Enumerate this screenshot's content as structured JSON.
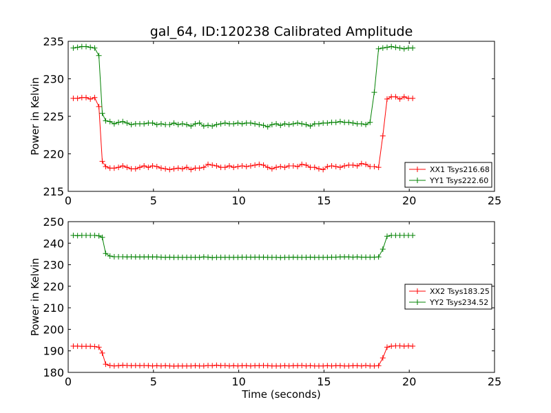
{
  "chart_data": [
    {
      "type": "line",
      "title": "gal_64, ID:120238 Calibrated Amplitude",
      "xlabel": "",
      "ylabel": "Power in Kelvin",
      "xlim": [
        0,
        25
      ],
      "ylim": [
        215,
        235
      ],
      "xticks": [
        "0",
        "5",
        "10",
        "15",
        "20",
        "25"
      ],
      "yticks": [
        "215",
        "220",
        "225",
        "230",
        "235"
      ],
      "grid": false,
      "legend_position": "lower-right",
      "marker": "plus",
      "x": [
        0.3,
        0.55,
        0.8,
        1.05,
        1.3,
        1.55,
        1.8,
        2.0,
        2.2,
        2.45,
        2.7,
        2.95,
        3.2,
        3.45,
        3.7,
        3.95,
        4.2,
        4.45,
        4.7,
        4.95,
        5.2,
        5.45,
        5.7,
        5.95,
        6.2,
        6.45,
        6.7,
        6.95,
        7.2,
        7.45,
        7.7,
        7.95,
        8.2,
        8.45,
        8.7,
        8.95,
        9.2,
        9.45,
        9.7,
        9.95,
        10.2,
        10.45,
        10.7,
        10.95,
        11.2,
        11.45,
        11.7,
        11.95,
        12.2,
        12.45,
        12.7,
        12.95,
        13.2,
        13.45,
        13.7,
        13.95,
        14.2,
        14.45,
        14.7,
        14.95,
        15.2,
        15.45,
        15.7,
        15.95,
        16.2,
        16.45,
        16.7,
        16.95,
        17.2,
        17.45,
        17.7,
        17.95,
        18.2,
        18.45,
        18.7,
        18.95,
        19.2,
        19.45,
        19.7,
        19.95,
        20.2
      ],
      "series": [
        {
          "name": "XX1 Tsys216.68",
          "color": "#ff0000",
          "values": [
            227.4,
            227.4,
            227.5,
            227.5,
            227.3,
            227.5,
            226.3,
            219.0,
            218.3,
            218.1,
            218.1,
            218.2,
            218.4,
            218.2,
            218.0,
            218.0,
            218.2,
            218.4,
            218.2,
            218.4,
            218.3,
            218.1,
            218.0,
            217.9,
            218.0,
            218.1,
            218.0,
            218.2,
            217.9,
            218.1,
            218.1,
            218.2,
            218.6,
            218.5,
            218.4,
            218.2,
            218.2,
            218.4,
            218.2,
            218.3,
            218.4,
            218.3,
            218.4,
            218.5,
            218.6,
            218.5,
            218.2,
            218.0,
            218.2,
            218.3,
            218.2,
            218.4,
            218.4,
            218.3,
            218.6,
            218.5,
            218.2,
            218.2,
            218.0,
            217.9,
            218.3,
            218.4,
            218.3,
            218.2,
            218.4,
            218.5,
            218.5,
            218.4,
            218.7,
            218.6,
            218.3,
            218.3,
            218.2,
            222.4,
            227.3,
            227.6,
            227.6,
            227.3,
            227.6,
            227.4,
            227.4
          ]
        },
        {
          "name": "YY1 Tsys222.60",
          "color": "#008000",
          "values": [
            234.1,
            234.2,
            234.3,
            234.3,
            234.2,
            234.1,
            233.1,
            225.4,
            224.4,
            224.3,
            224.0,
            224.2,
            224.3,
            224.1,
            223.9,
            224.0,
            224.0,
            224.0,
            224.1,
            224.1,
            223.9,
            224.0,
            223.9,
            223.9,
            224.1,
            223.9,
            224.0,
            223.9,
            223.7,
            224.0,
            224.1,
            223.7,
            223.8,
            223.7,
            223.9,
            224.0,
            224.1,
            224.0,
            224.0,
            224.1,
            224.0,
            224.1,
            224.1,
            224.0,
            223.9,
            223.8,
            223.6,
            223.9,
            224.0,
            223.8,
            224.0,
            223.9,
            224.0,
            224.1,
            224.0,
            223.9,
            223.7,
            224.0,
            224.0,
            224.1,
            224.1,
            224.2,
            224.2,
            224.3,
            224.2,
            224.2,
            224.1,
            224.0,
            224.0,
            223.9,
            224.2,
            228.2,
            234.0,
            234.1,
            234.2,
            234.3,
            234.2,
            234.1,
            234.0,
            234.1,
            234.1
          ]
        }
      ]
    },
    {
      "type": "line",
      "title": "",
      "xlabel": "Time (seconds)",
      "ylabel": "Power in Kelvin",
      "xlim": [
        0,
        25
      ],
      "ylim": [
        180,
        250
      ],
      "xticks": [
        "0",
        "5",
        "10",
        "15",
        "20",
        "25"
      ],
      "yticks": [
        "180",
        "190",
        "200",
        "210",
        "220",
        "230",
        "240",
        "250"
      ],
      "grid": false,
      "legend_position": "center-right",
      "marker": "plus",
      "x": [
        0.3,
        0.55,
        0.8,
        1.05,
        1.3,
        1.55,
        1.8,
        2.0,
        2.2,
        2.45,
        2.7,
        2.95,
        3.2,
        3.45,
        3.7,
        3.95,
        4.2,
        4.45,
        4.7,
        4.95,
        5.2,
        5.45,
        5.7,
        5.95,
        6.2,
        6.45,
        6.7,
        6.95,
        7.2,
        7.45,
        7.7,
        7.95,
        8.2,
        8.45,
        8.7,
        8.95,
        9.2,
        9.45,
        9.7,
        9.95,
        10.2,
        10.45,
        10.7,
        10.95,
        11.2,
        11.45,
        11.7,
        11.95,
        12.2,
        12.45,
        12.7,
        12.95,
        13.2,
        13.45,
        13.7,
        13.95,
        14.2,
        14.45,
        14.7,
        14.95,
        15.2,
        15.45,
        15.7,
        15.95,
        16.2,
        16.45,
        16.7,
        16.95,
        17.2,
        17.45,
        17.7,
        17.95,
        18.2,
        18.45,
        18.7,
        18.95,
        19.2,
        19.45,
        19.7,
        19.95,
        20.2
      ],
      "series": [
        {
          "name": "XX2 Tsys183.25",
          "color": "#ff0000",
          "values": [
            192.2,
            192.2,
            192.1,
            192.1,
            192.1,
            192.0,
            191.7,
            189.0,
            183.8,
            183.2,
            183.0,
            183.1,
            183.3,
            183.2,
            183.1,
            183.2,
            183.1,
            183.2,
            183.1,
            183.0,
            183.1,
            183.0,
            183.1,
            183.0,
            182.9,
            183.0,
            183.0,
            183.0,
            183.0,
            183.1,
            183.0,
            183.0,
            183.2,
            183.1,
            183.3,
            183.1,
            183.2,
            183.0,
            183.1,
            183.0,
            183.1,
            183.1,
            183.0,
            183.1,
            183.1,
            183.2,
            183.1,
            183.0,
            183.0,
            183.0,
            183.1,
            183.0,
            183.1,
            183.1,
            183.2,
            183.0,
            183.1,
            183.0,
            183.0,
            183.0,
            183.1,
            183.0,
            183.1,
            183.1,
            183.0,
            183.0,
            183.1,
            183.1,
            183.0,
            183.2,
            183.0,
            183.0,
            183.1,
            186.7,
            191.7,
            192.2,
            192.3,
            192.3,
            192.2,
            192.3,
            192.2
          ]
        },
        {
          "name": "YY2 Tsys234.52",
          "color": "#008000",
          "values": [
            243.6,
            243.5,
            243.6,
            243.6,
            243.6,
            243.6,
            243.4,
            242.7,
            235.2,
            234.0,
            233.7,
            233.7,
            233.7,
            233.6,
            233.7,
            233.6,
            233.6,
            233.6,
            233.6,
            233.6,
            233.6,
            233.5,
            233.4,
            233.5,
            233.4,
            233.4,
            233.4,
            233.4,
            233.4,
            233.4,
            233.4,
            233.6,
            233.5,
            233.3,
            233.4,
            233.4,
            233.4,
            233.4,
            233.4,
            233.4,
            233.5,
            233.5,
            233.5,
            233.5,
            233.5,
            233.5,
            233.4,
            233.4,
            233.4,
            233.3,
            233.4,
            233.4,
            233.5,
            233.4,
            233.4,
            233.4,
            233.5,
            233.4,
            233.4,
            233.4,
            233.4,
            233.5,
            233.5,
            233.6,
            233.6,
            233.6,
            233.5,
            233.6,
            233.5,
            233.5,
            233.5,
            233.5,
            233.6,
            237.2,
            243.2,
            243.6,
            243.6,
            243.6,
            243.6,
            243.6,
            243.6
          ]
        }
      ]
    }
  ]
}
